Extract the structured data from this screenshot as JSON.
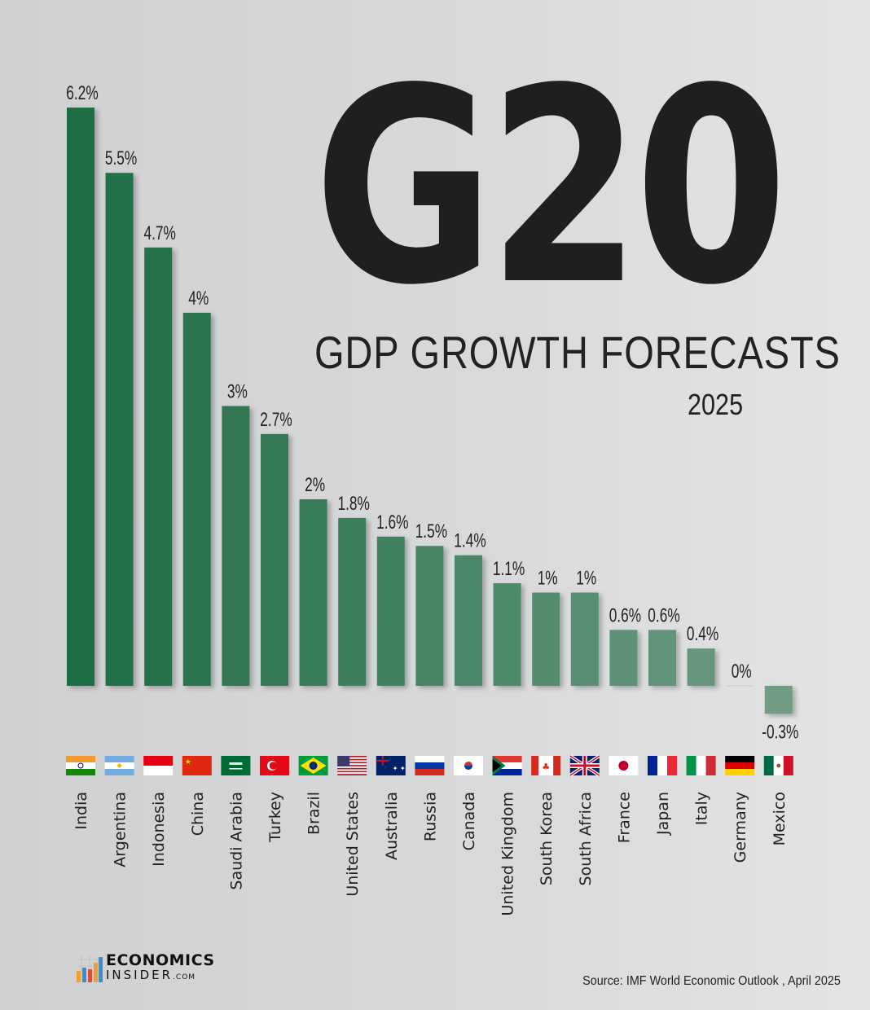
{
  "header": {
    "title": "G20",
    "subtitle": "GDP GROWTH FORECASTS",
    "year": "2025"
  },
  "chart_data": {
    "type": "bar",
    "title": "G20 GDP GROWTH FORECASTS 2025",
    "categories": [
      "India",
      "Argentina",
      "Indonesia",
      "China",
      "Saudi Arabia",
      "Turkey",
      "Brazil",
      "United States",
      "Australia",
      "Russia",
      "Canada",
      "United Kingdom",
      "South Korea",
      "South Africa",
      "France",
      "Japan",
      "Italy",
      "Germany",
      "Mexico"
    ],
    "values": [
      6.2,
      5.5,
      4.7,
      4,
      3,
      2.7,
      2,
      1.8,
      1.6,
      1.5,
      1.4,
      1.1,
      1,
      1,
      0.6,
      0.6,
      0.4,
      0,
      -0.3
    ],
    "data_labels": [
      "6.2%",
      "5.5%",
      "4.7%",
      "4%",
      "3%",
      "2.7%",
      "2%",
      "1.8%",
      "1.6%",
      "1.5%",
      "1.4%",
      "1.1%",
      "1%",
      "1%",
      "0.6%",
      "0.6%",
      "0.4%",
      "0%",
      "-0.3%"
    ],
    "flags": [
      "india-flag-icon",
      "argentina-flag-icon",
      "indonesia-flag-icon",
      "china-flag-icon",
      "saudi-arabia-flag-icon",
      "turkey-flag-icon",
      "brazil-flag-icon",
      "united-states-flag-icon",
      "australia-flag-icon",
      "russia-flag-icon",
      "south-korea-flag-icon",
      "south-africa-flag-icon",
      "canada-flag-icon",
      "united-kingdom-flag-icon",
      "japan-flag-icon",
      "france-flag-icon",
      "italy-flag-icon",
      "germany-flag-icon",
      "mexico-flag-icon"
    ],
    "ylim": [
      -0.3,
      6.2
    ],
    "grid": false,
    "colors": {
      "start": "#1e6d43",
      "end": "#6f9c84"
    }
  },
  "footer": {
    "logo_top": "ECONOMICS",
    "logo_bottom": "INSIDER",
    "logo_suffix": ".COM",
    "source": "Source: IMF World Economic Outlook , April 2025"
  }
}
